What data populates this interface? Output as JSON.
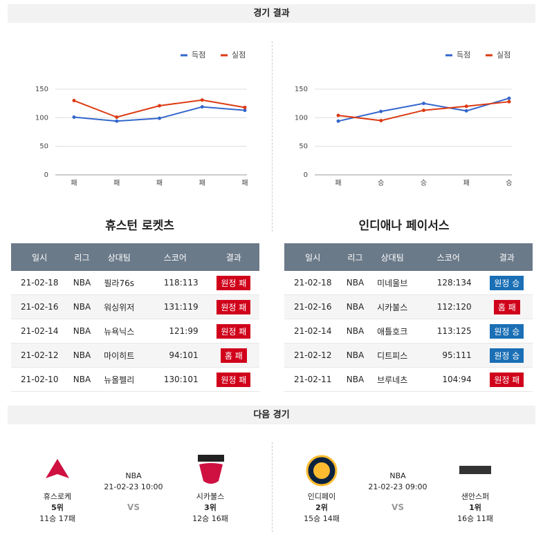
{
  "header": "경기 결과",
  "chart_data": [
    {
      "type": "line",
      "legend": "top-right",
      "grid": true,
      "categories": [
        "패",
        "패",
        "패",
        "패",
        "패"
      ],
      "series": [
        {
          "name": "득점",
          "color": "#3366cc",
          "values": [
            101,
            94,
            99,
            119,
            113
          ]
        },
        {
          "name": "실점",
          "color": "#dc3912",
          "values": [
            130,
            101,
            121,
            131,
            118
          ]
        }
      ],
      "ylim": [
        0,
        150
      ],
      "yticks": [
        0,
        50,
        100,
        150
      ]
    },
    {
      "type": "line",
      "legend": "top-right",
      "grid": true,
      "categories": [
        "패",
        "승",
        "승",
        "패",
        "승"
      ],
      "series": [
        {
          "name": "득점",
          "color": "#3366cc",
          "values": [
            94,
            111,
            125,
            112,
            134
          ]
        },
        {
          "name": "실점",
          "color": "#dc3912",
          "values": [
            104,
            95,
            113,
            120,
            128
          ]
        }
      ],
      "ylim": [
        0,
        150
      ],
      "yticks": [
        0,
        50,
        100,
        150
      ]
    }
  ],
  "results": [
    {
      "team": "휴스턴 로켓츠",
      "columns": [
        "일시",
        "리그",
        "상대팀",
        "스코어",
        "결과"
      ],
      "rows": [
        [
          "21-02-18",
          "NBA",
          "필라76s",
          "118:113",
          "원정 패"
        ],
        [
          "21-02-16",
          "NBA",
          "워싱위저",
          "131:119",
          "원정 패"
        ],
        [
          "21-02-14",
          "NBA",
          "뉴욕닉스",
          "121:99",
          "원정 패"
        ],
        [
          "21-02-12",
          "NBA",
          "마이히트",
          "94:101",
          "홈 패"
        ],
        [
          "21-02-10",
          "NBA",
          "뉴올펠리",
          "130:101",
          "원정 패"
        ]
      ]
    },
    {
      "team": "인디애나 페이서스",
      "columns": [
        "일시",
        "리그",
        "상대팀",
        "스코어",
        "결과"
      ],
      "rows": [
        [
          "21-02-18",
          "NBA",
          "미네울브",
          "128:134",
          "원정 승"
        ],
        [
          "21-02-16",
          "NBA",
          "시카불스",
          "112:120",
          "홈 패"
        ],
        [
          "21-02-14",
          "NBA",
          "애틀호크",
          "113:125",
          "원정 승"
        ],
        [
          "21-02-12",
          "NBA",
          "디트피스",
          "95:111",
          "원정 승"
        ],
        [
          "21-02-11",
          "NBA",
          "브루네츠",
          "104:94",
          "원정 패"
        ]
      ]
    }
  ],
  "next_header": "다음 경기",
  "next_games": [
    {
      "home": {
        "name": "휴스로케",
        "rank": "5위",
        "record": "11승 17패"
      },
      "league": "NBA",
      "time": "21-02-23 10:00",
      "vs": "VS",
      "away": {
        "name": "시카불스",
        "rank": "3위",
        "record": "12승 16패"
      }
    },
    {
      "home": {
        "name": "인디페이",
        "rank": "2위",
        "record": "15승 14패"
      },
      "league": "NBA",
      "time": "21-02-23 09:00",
      "vs": "VS",
      "away": {
        "name": "샌안스퍼",
        "rank": "1위",
        "record": "16승 11패"
      }
    }
  ]
}
